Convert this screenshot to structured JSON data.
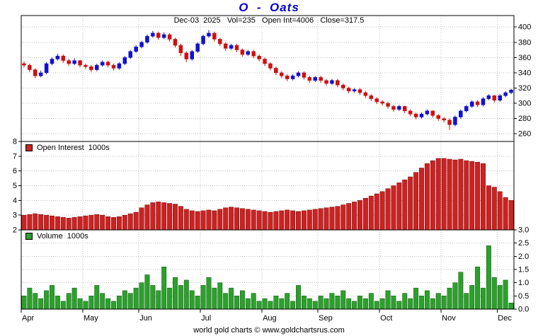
{
  "header": {
    "title": "O  -  Oats",
    "info_line": "Dec-03  2025   Vol=235   Open Int=4006   Close=317.5"
  },
  "legend": {
    "open_interest": "Open Interest  1000s",
    "volume": "Volume  1000s"
  },
  "footer": {
    "credit": "world gold charts © www.goldchartsrus.com"
  },
  "colors": {
    "title": "#0000cc",
    "candle_up": "#1111cc",
    "candle_down": "#cc1111",
    "open_interest_bar": "#cc2222",
    "open_interest_edge": "#7a0000",
    "volume_bar": "#2ca02c",
    "volume_edge": "#0a5a0a",
    "grid": "#c0c0c0",
    "axis_text": "#000000",
    "panel_border": "#000000"
  },
  "x_axis": {
    "months": [
      "Apr",
      "May",
      "Jun",
      "Jul",
      "Aug",
      "Sep",
      "Oct",
      "Nov",
      "Dec"
    ],
    "month_start_index": [
      0,
      11,
      21,
      32,
      43,
      53,
      64,
      75,
      85
    ],
    "points": 88
  },
  "chart_data": [
    {
      "type": "candlestick",
      "name": "price",
      "title": "O - Oats daily price",
      "ylim": [
        250,
        415
      ],
      "yticks": [
        260,
        280,
        300,
        320,
        340,
        360,
        380,
        400
      ],
      "ohlc": [
        [
          352,
          355,
          347,
          350
        ],
        [
          350,
          352,
          341,
          344
        ],
        [
          344,
          346,
          333,
          336
        ],
        [
          336,
          343,
          334,
          340
        ],
        [
          340,
          354,
          338,
          352
        ],
        [
          352,
          360,
          350,
          358
        ],
        [
          358,
          365,
          356,
          362
        ],
        [
          362,
          364,
          353,
          356
        ],
        [
          356,
          358,
          349,
          352
        ],
        [
          352,
          359,
          350,
          356
        ],
        [
          356,
          357,
          347,
          350
        ],
        [
          350,
          352,
          345,
          348
        ],
        [
          348,
          350,
          341,
          344
        ],
        [
          344,
          352,
          342,
          350
        ],
        [
          350,
          356,
          348,
          354
        ],
        [
          354,
          356,
          347,
          350
        ],
        [
          350,
          352,
          343,
          346
        ],
        [
          346,
          354,
          344,
          352
        ],
        [
          352,
          362,
          350,
          360
        ],
        [
          360,
          370,
          358,
          368
        ],
        [
          368,
          376,
          366,
          374
        ],
        [
          374,
          382,
          372,
          380
        ],
        [
          380,
          390,
          378,
          388
        ],
        [
          388,
          395,
          386,
          392
        ],
        [
          392,
          394,
          383,
          386
        ],
        [
          386,
          393,
          384,
          390
        ],
        [
          390,
          392,
          381,
          384
        ],
        [
          384,
          386,
          373,
          376
        ],
        [
          376,
          378,
          362,
          366
        ],
        [
          366,
          368,
          354,
          358
        ],
        [
          358,
          370,
          356,
          368
        ],
        [
          368,
          380,
          366,
          378
        ],
        [
          378,
          390,
          376,
          388
        ],
        [
          388,
          396,
          386,
          392
        ],
        [
          392,
          394,
          381,
          384
        ],
        [
          384,
          386,
          375,
          378
        ],
        [
          378,
          380,
          369,
          372
        ],
        [
          372,
          378,
          370,
          376
        ],
        [
          376,
          378,
          367,
          370
        ],
        [
          370,
          372,
          361,
          364
        ],
        [
          364,
          370,
          362,
          368
        ],
        [
          368,
          370,
          359,
          362
        ],
        [
          362,
          364,
          355,
          358
        ],
        [
          358,
          360,
          349,
          352
        ],
        [
          352,
          354,
          343,
          346
        ],
        [
          346,
          348,
          337,
          340
        ],
        [
          340,
          342,
          333,
          336
        ],
        [
          336,
          338,
          329,
          332
        ],
        [
          332,
          338,
          330,
          336
        ],
        [
          336,
          342,
          334,
          340
        ],
        [
          340,
          342,
          331,
          334
        ],
        [
          334,
          336,
          327,
          330
        ],
        [
          330,
          336,
          328,
          334
        ],
        [
          334,
          336,
          327,
          330
        ],
        [
          330,
          332,
          323,
          326
        ],
        [
          326,
          332,
          324,
          330
        ],
        [
          330,
          332,
          321,
          324
        ],
        [
          324,
          326,
          317,
          320
        ],
        [
          320,
          322,
          313,
          316
        ],
        [
          316,
          320,
          314,
          318
        ],
        [
          318,
          320,
          311,
          314
        ],
        [
          314,
          316,
          307,
          310
        ],
        [
          310,
          312,
          303,
          306
        ],
        [
          306,
          308,
          299,
          302
        ],
        [
          302,
          304,
          297,
          300
        ],
        [
          300,
          302,
          293,
          296
        ],
        [
          296,
          298,
          289,
          292
        ],
        [
          292,
          298,
          290,
          296
        ],
        [
          296,
          297,
          287,
          290
        ],
        [
          290,
          292,
          283,
          286
        ],
        [
          286,
          288,
          279,
          282
        ],
        [
          282,
          288,
          280,
          286
        ],
        [
          286,
          292,
          284,
          290
        ],
        [
          290,
          291,
          281,
          284
        ],
        [
          284,
          286,
          277,
          280
        ],
        [
          280,
          282,
          275,
          278
        ],
        [
          278,
          280,
          265,
          272
        ],
        [
          272,
          284,
          270,
          282
        ],
        [
          282,
          292,
          280,
          290
        ],
        [
          290,
          298,
          288,
          296
        ],
        [
          296,
          304,
          294,
          302
        ],
        [
          302,
          304,
          295,
          298
        ],
        [
          298,
          308,
          296,
          306
        ],
        [
          306,
          312,
          304,
          310
        ],
        [
          310,
          311,
          301,
          304
        ],
        [
          304,
          312,
          302,
          310
        ],
        [
          310,
          316,
          308,
          314
        ],
        [
          314,
          319,
          312,
          317.5
        ]
      ]
    },
    {
      "type": "bar",
      "name": "open_interest",
      "legend": "Open Interest  1000s",
      "ylim": [
        2,
        8
      ],
      "yticks": [
        2,
        3,
        4,
        5,
        6,
        7,
        8
      ],
      "values": [
        3.0,
        3.05,
        3.1,
        3.05,
        3.0,
        2.95,
        2.9,
        2.85,
        2.8,
        2.85,
        2.9,
        2.95,
        3.0,
        3.05,
        3.0,
        2.9,
        2.85,
        2.9,
        3.0,
        3.1,
        3.2,
        3.5,
        3.7,
        3.85,
        3.9,
        3.85,
        3.8,
        3.75,
        3.6,
        3.4,
        3.3,
        3.25,
        3.3,
        3.35,
        3.3,
        3.4,
        3.5,
        3.55,
        3.5,
        3.45,
        3.4,
        3.35,
        3.3,
        3.25,
        3.2,
        3.25,
        3.3,
        3.35,
        3.3,
        3.25,
        3.3,
        3.35,
        3.4,
        3.45,
        3.5,
        3.55,
        3.6,
        3.7,
        3.8,
        3.9,
        4.0,
        4.15,
        4.3,
        4.45,
        4.6,
        4.8,
        5.0,
        5.2,
        5.4,
        5.6,
        5.9,
        6.2,
        6.5,
        6.7,
        6.85,
        6.85,
        6.8,
        6.75,
        6.8,
        6.7,
        6.65,
        6.6,
        6.5,
        5.0,
        4.9,
        4.6,
        4.2,
        4.006
      ]
    },
    {
      "type": "bar",
      "name": "volume",
      "legend": "Volume  1000s",
      "ylim": [
        0,
        3
      ],
      "yticks": [
        "0.0",
        "0.5",
        "1.0",
        "1.5",
        "2.0",
        "2.5",
        "3.0"
      ],
      "values": [
        0.5,
        0.8,
        0.6,
        0.4,
        0.7,
        0.9,
        0.5,
        0.3,
        0.6,
        0.8,
        0.4,
        0.3,
        0.5,
        0.9,
        0.6,
        0.4,
        0.3,
        0.5,
        0.7,
        0.6,
        0.8,
        1.0,
        1.3,
        0.9,
        0.7,
        1.6,
        0.8,
        1.2,
        0.9,
        1.1,
        0.7,
        0.5,
        0.9,
        1.2,
        0.8,
        1.0,
        0.6,
        0.8,
        0.5,
        0.7,
        0.4,
        0.6,
        0.3,
        0.4,
        0.3,
        0.5,
        0.4,
        0.6,
        0.3,
        0.9,
        0.5,
        0.4,
        0.3,
        0.5,
        0.4,
        0.6,
        0.5,
        0.7,
        0.4,
        0.3,
        0.5,
        0.4,
        0.6,
        0.3,
        0.4,
        0.7,
        0.5,
        0.3,
        0.6,
        0.4,
        0.8,
        0.5,
        0.7,
        0.4,
        0.6,
        0.5,
        0.8,
        1.0,
        1.4,
        0.6,
        0.9,
        1.6,
        0.8,
        2.4,
        1.2,
        0.9,
        1.1,
        0.235
      ]
    }
  ]
}
